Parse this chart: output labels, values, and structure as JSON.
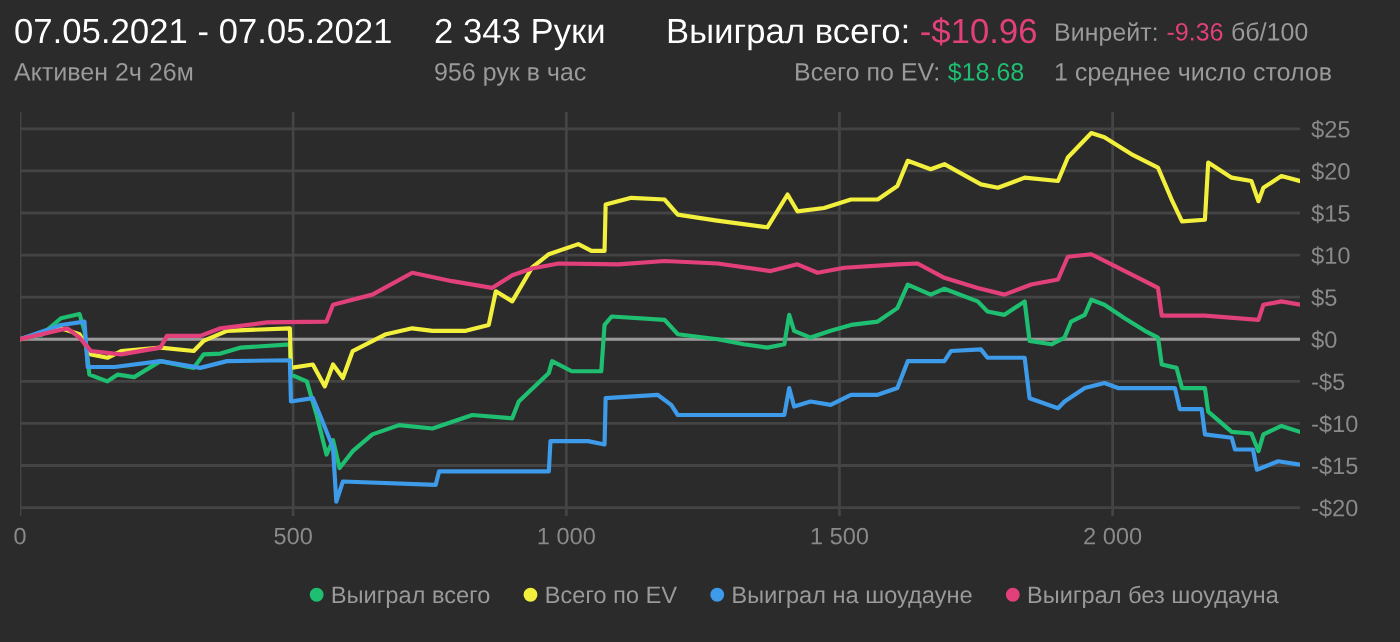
{
  "chart_data": {
    "type": "line",
    "title": "07.05.2021 - 07.05.2021",
    "subtitle": "Активен 2ч 26м",
    "annotations": [
      "2 343 Руки",
      "956 рук в час",
      "Выиграл всего:",
      "-$10.96",
      "Всего по EV:",
      "$18.68",
      "Винрейт:",
      "-9.36",
      "бб/100",
      "1 среднее число столов"
    ],
    "xlim": [
      0,
      2343
    ],
    "xticks": [
      0,
      500,
      {
        "value": 1000,
        "label": "1 000"
      },
      {
        "value": 1500,
        "label": "1 500"
      },
      {
        "value": 2000,
        "label": "2 000"
      }
    ],
    "ylim": [
      -21,
      27
    ],
    "yticks": [
      {
        "value": -20,
        "label": "-$20"
      },
      {
        "value": -15,
        "label": "-$15"
      },
      {
        "value": -10,
        "label": "-$10"
      },
      {
        "value": -5,
        "label": "-$5"
      },
      {
        "value": 0,
        "label": "$0"
      },
      {
        "value": 5,
        "label": "$5"
      },
      {
        "value": 10,
        "label": "$10"
      },
      {
        "value": 15,
        "label": "$15"
      },
      {
        "value": 20,
        "label": "$20"
      },
      {
        "value": 25,
        "label": "$25"
      }
    ],
    "grid": true,
    "legend": "bottom right",
    "line_style": "solid",
    "ref_lines": [
      {
        "axis": "y",
        "value": 0,
        "color": "#9a9a9a"
      }
    ],
    "series": [
      {
        "name": "Выиграл всего",
        "color": "#1fbf72",
        "x": [
          0,
          39,
          75,
          109,
          118,
          127,
          160,
          179,
          209,
          257,
          318,
          336,
          367,
          403,
          494,
          496,
          525,
          543,
          561,
          573,
          585,
          609,
          645,
          694,
          755,
          828,
          901,
          913,
          968,
          974,
          1010,
          1064,
          1070,
          1083,
          1180,
          1204,
          1277,
          1325,
          1368,
          1399,
          1408,
          1417,
          1447,
          1484,
          1521,
          1570,
          1606,
          1625,
          1667,
          1692,
          1753,
          1771,
          1802,
          1839,
          1848,
          1888,
          1912,
          1924,
          1949,
          1961,
          1985,
          2022,
          2059,
          2083,
          2090,
          2117,
          2127,
          2169,
          2175,
          2218,
          2254,
          2267,
          2276,
          2309,
          2343
        ],
        "values": [
          0,
          0.5,
          2.5,
          3,
          1,
          -4.2,
          -5,
          -4.2,
          -4.5,
          -2.6,
          -3.4,
          -1.8,
          -1.7,
          -1,
          -0.6,
          -4.2,
          -5,
          -9,
          -13.7,
          -12,
          -15.3,
          -13.3,
          -11.3,
          -10.2,
          -10.6,
          -9,
          -9.4,
          -7.4,
          -4,
          -2.6,
          -3.8,
          -3.8,
          1.7,
          2.7,
          2.3,
          0.6,
          0,
          -0.6,
          -1,
          -0.6,
          2.9,
          1,
          0.2,
          1,
          1.7,
          2.1,
          3.7,
          6.5,
          5.3,
          6,
          4.5,
          3.3,
          2.9,
          4.5,
          -0.2,
          -0.6,
          0.2,
          2.1,
          2.9,
          4.7,
          4.1,
          2.5,
          1,
          0.2,
          -3,
          -3.4,
          -5.8,
          -5.8,
          -8.6,
          -11,
          -11.2,
          -13.3,
          -11.3,
          -10.3,
          -11
        ]
      },
      {
        "name": "Всего по EV",
        "color": "#f2f03c",
        "x": [
          0,
          75,
          109,
          130,
          160,
          185,
          257,
          318,
          336,
          379,
          494,
          496,
          536,
          558,
          573,
          591,
          609,
          670,
          718,
          755,
          816,
          858,
          871,
          901,
          937,
          968,
          1022,
          1046,
          1070,
          1072,
          1119,
          1180,
          1204,
          1276,
          1368,
          1405,
          1423,
          1472,
          1521,
          1570,
          1606,
          1625,
          1667,
          1692,
          1759,
          1790,
          1839,
          1900,
          1918,
          1961,
          1985,
          2034,
          2083,
          2108,
          2127,
          2169,
          2175,
          2218,
          2254,
          2267,
          2276,
          2309,
          2343
        ],
        "values": [
          0,
          1.3,
          0.6,
          -1.8,
          -2.2,
          -1.4,
          -1,
          -1.4,
          -0.2,
          1,
          1.3,
          -3.4,
          -3,
          -5.6,
          -3,
          -4.6,
          -1.4,
          0.6,
          1.3,
          1,
          1,
          1.7,
          5.7,
          4.5,
          8.5,
          10.1,
          11.3,
          10.5,
          10.5,
          16,
          16.8,
          16.6,
          14.8,
          14.1,
          13.3,
          17.2,
          15.2,
          15.6,
          16.6,
          16.6,
          18.2,
          21.2,
          20.2,
          20.8,
          18.4,
          18,
          19.2,
          18.8,
          21.6,
          24.5,
          24,
          22,
          20.4,
          16.6,
          14,
          14.2,
          21,
          19.2,
          18.8,
          16.4,
          18,
          19.4,
          18.8
        ]
      },
      {
        "name": "Выиграл на шоудауне",
        "color": "#3d9be9",
        "x": [
          0,
          75,
          118,
          124,
          173,
          257,
          330,
          379,
          494,
          496,
          536,
          549,
          573,
          579,
          591,
          761,
          767,
          968,
          971,
          1040,
          1070,
          1072,
          1167,
          1192,
          1204,
          1277,
          1399,
          1408,
          1417,
          1447,
          1484,
          1521,
          1570,
          1606,
          1625,
          1692,
          1704,
          1759,
          1771,
          1839,
          1848,
          1900,
          1912,
          1949,
          1985,
          2010,
          2114,
          2123,
          2163,
          2169,
          2218,
          2224,
          2257,
          2264,
          2303,
          2343
        ],
        "values": [
          0,
          1.7,
          2.1,
          -3.3,
          -3.3,
          -2.6,
          -3.4,
          -2.6,
          -2.5,
          -7.4,
          -7,
          -9,
          -12.9,
          -19.3,
          -16.9,
          -17.3,
          -15.7,
          -15.7,
          -12.1,
          -12.1,
          -12.5,
          -7,
          -6.6,
          -7.8,
          -9,
          -9,
          -9,
          -5.8,
          -8,
          -7.4,
          -7.8,
          -6.6,
          -6.6,
          -5.8,
          -2.6,
          -2.6,
          -1.4,
          -1.2,
          -2.2,
          -2.2,
          -7,
          -8.2,
          -7.4,
          -5.8,
          -5.2,
          -5.8,
          -5.8,
          -8.3,
          -8.3,
          -11.3,
          -11.7,
          -13.1,
          -13.1,
          -15.5,
          -14.5,
          -14.9
        ]
      },
      {
        "name": "Выиграл без шоудауна",
        "color": "#e2407a",
        "x": [
          0,
          87,
          109,
          130,
          185,
          257,
          269,
          330,
          367,
          452,
          561,
          573,
          645,
          718,
          791,
          864,
          901,
          937,
          986,
          1095,
          1180,
          1277,
          1374,
          1423,
          1460,
          1509,
          1606,
          1643,
          1692,
          1753,
          1802,
          1851,
          1900,
          1918,
          1961,
          1998,
          2047,
          2083,
          2090,
          2169,
          2267,
          2276,
          2309,
          2343
        ],
        "values": [
          0,
          1.3,
          0.2,
          -1.4,
          -1.8,
          -1,
          0.4,
          0.4,
          1.3,
          2,
          2.1,
          4.1,
          5.3,
          7.9,
          6.9,
          6.1,
          7.6,
          8.4,
          9,
          8.9,
          9.3,
          9,
          8.1,
          8.9,
          7.9,
          8.5,
          8.9,
          9,
          7.3,
          6.1,
          5.3,
          6.5,
          7.1,
          9.8,
          10.1,
          8.9,
          7.3,
          6.1,
          2.8,
          2.8,
          2.3,
          4.1,
          4.5,
          4.1
        ]
      }
    ]
  }
}
